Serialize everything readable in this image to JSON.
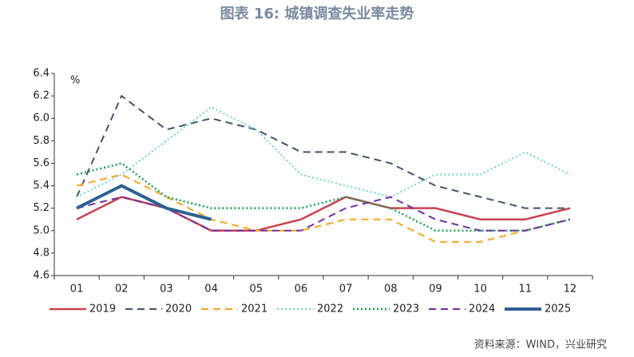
{
  "chart_data": {
    "type": "line",
    "title": "图表 16: 城镇调查失业率走势",
    "y_unit": "%",
    "source": "资料来源：WIND，兴业研究",
    "categories": [
      "01",
      "02",
      "03",
      "04",
      "05",
      "06",
      "07",
      "08",
      "09",
      "10",
      "11",
      "12"
    ],
    "ylim": [
      4.6,
      6.4
    ],
    "yticks": [
      4.6,
      4.8,
      {
        "value": 5,
        "label": "5.0"
      },
      5.2,
      5.4,
      5.6,
      5.8,
      {
        "value": 6,
        "label": "6.0"
      },
      6.2,
      6.4
    ],
    "legend": "bottom",
    "series": [
      {
        "name": "2019",
        "color": "#c8424f",
        "dash": "solid",
        "width": 2.5,
        "values": [
          5.1,
          5.3,
          5.2,
          5.0,
          5.0,
          5.1,
          5.3,
          5.2,
          5.2,
          5.1,
          5.1,
          5.2
        ]
      },
      {
        "name": "2020",
        "color": "#44546a",
        "dash": "dashed",
        "width": 2,
        "values": [
          5.3,
          6.2,
          5.9,
          6.0,
          5.9,
          5.7,
          5.7,
          5.6,
          5.4,
          5.3,
          5.2,
          5.2
        ]
      },
      {
        "name": "2021",
        "color": "#f5a623",
        "dash": "dashed",
        "width": 2,
        "values": [
          5.4,
          5.5,
          5.3,
          5.1,
          5.0,
          5.0,
          5.1,
          5.1,
          4.9,
          4.9,
          5.0,
          5.1
        ]
      },
      {
        "name": "2022",
        "color": "#6cd4d4",
        "dash": "dotted",
        "width": 2,
        "values": [
          5.3,
          5.5,
          5.8,
          6.1,
          5.9,
          5.5,
          5.4,
          5.3,
          5.5,
          5.5,
          5.7,
          5.5
        ]
      },
      {
        "name": "2023",
        "color": "#1aa050",
        "dash": "dotted",
        "width": 2.5,
        "values": [
          5.5,
          5.6,
          5.3,
          5.2,
          5.2,
          5.2,
          5.3,
          5.2,
          5.0,
          5.0,
          5.0,
          5.1
        ]
      },
      {
        "name": "2024",
        "color": "#7030a0",
        "dash": "dashed",
        "width": 2,
        "values": [
          5.2,
          5.3,
          5.2,
          5.0,
          5.0,
          5.0,
          5.2,
          5.3,
          5.1,
          5.0,
          5.0,
          5.1
        ]
      },
      {
        "name": "2025",
        "color": "#2e6090",
        "dash": "solid",
        "width": 4,
        "values": [
          5.2,
          5.4,
          5.2,
          5.1,
          null,
          null,
          null,
          null,
          null,
          null,
          null,
          null
        ]
      }
    ]
  }
}
